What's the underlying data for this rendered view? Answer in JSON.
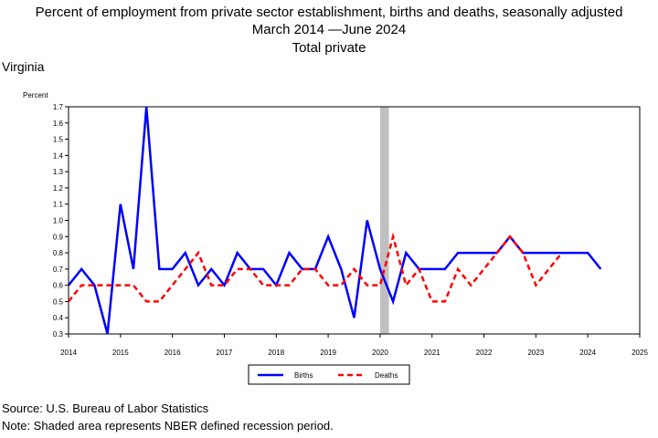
{
  "header": {
    "title_line1": "Percent of employment from private sector establishment, births and deaths, seasonally adjusted",
    "title_line2": "March 2014 —June 2024",
    "title_line3": "Total private",
    "area": "Virginia"
  },
  "footer": {
    "source": "Source: U.S. Bureau of Labor Statistics",
    "note": "Note: Shaded area represents NBER defined recession period."
  },
  "chart_data": {
    "type": "line",
    "ylabel": "Percent",
    "xlim": [
      2014,
      2025
    ],
    "ylim": [
      0.3,
      1.7
    ],
    "x_ticks": [
      2014,
      2015,
      2016,
      2017,
      2018,
      2019,
      2020,
      2021,
      2022,
      2023,
      2024,
      2025
    ],
    "y_ticks": [
      0.3,
      0.4,
      0.5,
      0.6,
      0.7,
      0.8,
      0.9,
      1.0,
      1.1,
      1.2,
      1.3,
      1.4,
      1.5,
      1.6,
      1.7
    ],
    "grid": false,
    "legend_position": "bottom",
    "recession": {
      "start": 2020.0,
      "end": 2020.17,
      "color": "#c0c0c0"
    },
    "x": [
      2014.0,
      2014.25,
      2014.5,
      2014.75,
      2015.0,
      2015.25,
      2015.5,
      2015.75,
      2016.0,
      2016.25,
      2016.5,
      2016.75,
      2017.0,
      2017.25,
      2017.5,
      2017.75,
      2018.0,
      2018.25,
      2018.5,
      2018.75,
      2019.0,
      2019.25,
      2019.5,
      2019.75,
      2020.0,
      2020.25,
      2020.5,
      2020.75,
      2021.0,
      2021.25,
      2021.5,
      2021.75,
      2022.0,
      2022.25,
      2022.5,
      2022.75,
      2023.0,
      2023.25,
      2023.5,
      2023.75,
      2024.0,
      2024.25
    ],
    "series": [
      {
        "name": "Births",
        "color": "#0000ff",
        "dash": "solid",
        "values": [
          0.6,
          0.7,
          0.6,
          0.3,
          1.1,
          0.7,
          1.7,
          0.7,
          0.7,
          0.8,
          0.6,
          0.7,
          0.6,
          0.8,
          0.7,
          0.7,
          0.6,
          0.8,
          0.7,
          0.7,
          0.9,
          0.7,
          0.4,
          1.0,
          0.7,
          0.5,
          0.8,
          0.7,
          0.7,
          0.7,
          0.8,
          0.8,
          0.8,
          0.8,
          0.9,
          0.8,
          0.8,
          0.8,
          0.8,
          0.8,
          0.8,
          0.7
        ]
      },
      {
        "name": "Deaths",
        "color": "#ff0000",
        "dash": "dashed",
        "values": [
          0.5,
          0.6,
          0.6,
          0.6,
          0.6,
          0.6,
          0.5,
          0.5,
          0.6,
          0.7,
          0.8,
          0.6,
          0.6,
          0.7,
          0.7,
          0.6,
          0.6,
          0.6,
          0.7,
          0.7,
          0.6,
          0.6,
          0.7,
          0.6,
          0.6,
          0.9,
          0.6,
          0.7,
          0.5,
          0.5,
          0.7,
          0.6,
          0.7,
          0.8,
          0.9,
          0.8,
          0.6,
          0.7,
          0.8,
          null,
          null,
          null
        ]
      }
    ]
  }
}
